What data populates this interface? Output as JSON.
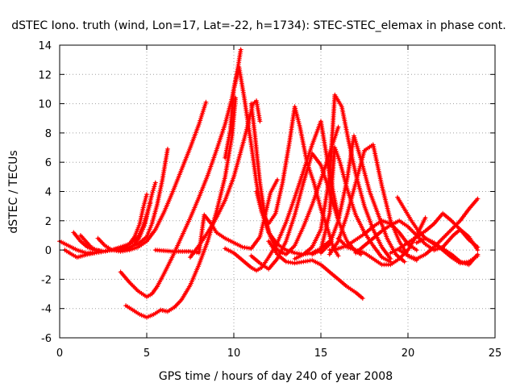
{
  "chart_data": {
    "type": "scatter",
    "title": "dSTEC Iono. truth (wind, Lon=17, Lat=-22, h=1734): STEC-STEC_elemax in phase cont.",
    "xlabel": "GPS time / hours of day 240 of year 2008",
    "ylabel": "dSTEC  / TECUs",
    "xlim": [
      0,
      25
    ],
    "ylim": [
      -6,
      14
    ],
    "xticks": [
      "0",
      "5",
      "10",
      "15",
      "20",
      "25"
    ],
    "yticks": [
      "-6",
      "-4",
      "-2",
      "0",
      "2",
      "4",
      "6",
      "8",
      "10",
      "12",
      "14"
    ],
    "grid": true,
    "marker": "+",
    "color": "#ff0000",
    "series": [
      {
        "x": [
          0.0,
          0.5,
          1.0,
          1.5,
          2.0,
          2.5,
          3.0,
          3.5,
          4.0,
          4.3,
          4.6,
          4.9,
          5.1,
          5.3,
          5.5
        ],
        "y": [
          0.6,
          0.3,
          0.0,
          -0.2,
          -0.2,
          -0.1,
          0.0,
          0.0,
          0.1,
          0.4,
          0.9,
          1.8,
          2.8,
          3.8,
          4.6
        ]
      },
      {
        "x": [
          0.3,
          0.7,
          1.0,
          1.3,
          1.6,
          2.0,
          2.5,
          3.0,
          3.5,
          4.0,
          4.3,
          4.6,
          4.8,
          5.0
        ],
        "y": [
          0.0,
          -0.3,
          -0.5,
          -0.4,
          -0.3,
          -0.2,
          -0.1,
          0.0,
          0.1,
          0.4,
          0.9,
          1.8,
          2.9,
          3.8
        ]
      },
      {
        "x": [
          0.8,
          1.2,
          1.6,
          2.0,
          2.5,
          3.0,
          3.5,
          4.0,
          4.5,
          5.0,
          5.3,
          5.6,
          5.9,
          6.2
        ],
        "y": [
          1.2,
          0.6,
          0.2,
          0.0,
          -0.1,
          0.0,
          0.1,
          0.2,
          0.4,
          0.9,
          1.8,
          3.1,
          4.8,
          6.9
        ]
      },
      {
        "x": [
          1.2,
          1.5,
          1.8,
          2.1,
          2.5,
          3.0,
          3.5,
          4.0,
          4.5,
          4.8,
          5.0,
          5.2
        ],
        "y": [
          1.0,
          0.6,
          0.2,
          0.0,
          -0.1,
          0.0,
          0.2,
          0.4,
          0.9,
          1.6,
          2.4,
          3.2
        ]
      },
      {
        "x": [
          2.2,
          2.6,
          3.0,
          3.5,
          4.0,
          4.5,
          5.0,
          5.5,
          6.0,
          6.5,
          7.0,
          7.5,
          8.0,
          8.4
        ],
        "y": [
          0.8,
          0.3,
          0.0,
          -0.1,
          0.0,
          0.2,
          0.6,
          1.4,
          2.6,
          4.0,
          5.5,
          7.0,
          8.6,
          10.1
        ]
      },
      {
        "x": [
          3.5,
          4.0,
          4.5,
          5.0,
          5.3,
          5.6,
          6.0,
          6.5,
          7.0,
          7.5,
          8.0,
          8.5,
          9.0,
          9.5,
          9.9,
          10.2,
          10.4
        ],
        "y": [
          -1.5,
          -2.2,
          -2.8,
          -3.2,
          -3.0,
          -2.5,
          -1.6,
          -0.4,
          0.9,
          2.2,
          3.6,
          5.1,
          6.8,
          8.6,
          10.4,
          12.2,
          13.7
        ]
      },
      {
        "x": [
          3.8,
          4.2,
          4.6,
          5.0,
          5.4,
          5.8,
          6.2,
          6.6,
          7.0,
          7.5,
          8.0,
          8.5,
          9.0,
          9.5,
          9.9,
          10.1
        ],
        "y": [
          -3.8,
          -4.1,
          -4.4,
          -4.6,
          -4.4,
          -4.1,
          -4.2,
          -3.9,
          -3.4,
          -2.4,
          -1.0,
          0.6,
          2.6,
          5.0,
          7.8,
          10.4
        ]
      },
      {
        "x": [
          5.5,
          6.5,
          7.5,
          8.0,
          8.3,
          8.7,
          9.0,
          9.5,
          10.0,
          10.5,
          11.0,
          11.5,
          11.8,
          12.1,
          12.5
        ],
        "y": [
          0.0,
          -0.1,
          -0.1,
          -0.2,
          2.4,
          1.8,
          1.2,
          0.8,
          0.5,
          0.2,
          0.1,
          0.9,
          2.4,
          3.9,
          4.8
        ]
      },
      {
        "x": [
          7.5,
          8.0,
          8.5,
          9.0,
          9.5,
          10.0,
          10.3,
          10.6,
          10.9,
          11.1,
          11.3,
          11.5
        ],
        "y": [
          -0.5,
          0.3,
          1.2,
          2.2,
          3.4,
          5.0,
          6.3,
          7.6,
          9.0,
          10.0,
          10.2,
          8.8
        ]
      },
      {
        "x": [
          9.5,
          9.8,
          10.0,
          10.3,
          10.6,
          11.0,
          11.3,
          11.6,
          12.0,
          12.5,
          13.0,
          13.5,
          14.0,
          14.5,
          15.0,
          15.5
        ],
        "y": [
          6.3,
          8.2,
          11.0,
          12.5,
          10.4,
          7.2,
          4.6,
          2.6,
          1.2,
          0.4,
          0.0,
          -0.2,
          -0.3,
          -0.2,
          0.1,
          0.6
        ]
      },
      {
        "x": [
          11.0,
          11.2,
          11.5,
          11.8,
          12.1,
          12.5,
          13.0,
          13.5,
          14.0,
          14.5,
          15.0,
          15.5,
          16.0
        ],
        "y": [
          10.0,
          8.0,
          4.6,
          2.2,
          0.9,
          0.0,
          -0.3,
          0.3,
          1.6,
          3.1,
          4.8,
          6.6,
          8.4
        ]
      },
      {
        "x": [
          11.3,
          11.6,
          12.0,
          12.4,
          12.8,
          13.2,
          13.5,
          13.8,
          14.2,
          14.6,
          15.0,
          15.4,
          15.7,
          16.0
        ],
        "y": [
          4.0,
          2.6,
          1.8,
          2.5,
          4.6,
          7.4,
          9.8,
          8.4,
          6.0,
          4.6,
          2.8,
          1.4,
          0.2,
          -0.4
        ]
      },
      {
        "x": [
          11.0,
          11.5,
          12.0,
          12.5,
          13.0,
          13.5,
          14.0,
          14.5,
          15.0,
          15.5,
          16.0,
          16.5,
          17.0,
          17.3
        ],
        "y": [
          -0.4,
          -0.9,
          -1.3,
          -0.6,
          0.6,
          2.4,
          4.6,
          6.6,
          5.8,
          4.0,
          2.0,
          0.6,
          -0.1,
          -0.3
        ]
      },
      {
        "x": [
          9.5,
          10.0,
          10.5,
          11.0,
          11.3,
          11.6,
          12.0,
          12.5,
          13.0,
          13.5,
          14.0,
          14.5,
          15.0,
          15.5,
          16.0
        ],
        "y": [
          0.1,
          -0.2,
          -0.7,
          -1.2,
          -1.4,
          -1.2,
          -0.5,
          0.5,
          1.9,
          3.6,
          5.4,
          7.2,
          8.8,
          5.2,
          2.2
        ]
      },
      {
        "x": [
          12.0,
          12.5,
          13.0,
          13.5,
          14.0,
          14.5,
          15.0,
          15.5,
          16.0,
          16.5,
          17.0,
          17.4
        ],
        "y": [
          0.6,
          -0.3,
          -0.8,
          -0.9,
          -0.8,
          -0.7,
          -1.0,
          -1.5,
          -2.0,
          -2.5,
          -2.9,
          -3.3
        ]
      },
      {
        "x": [
          13.5,
          14.0,
          14.5,
          15.0,
          15.5,
          15.8,
          16.2,
          16.6,
          17.0,
          17.5,
          18.0,
          18.5,
          19.0
        ],
        "y": [
          -0.6,
          -0.3,
          0.2,
          1.4,
          5.0,
          10.6,
          9.8,
          7.4,
          5.2,
          3.0,
          1.4,
          0.2,
          -0.6
        ]
      },
      {
        "x": [
          14.5,
          15.0,
          15.5,
          15.8,
          16.1,
          16.5,
          17.0,
          17.5,
          18.0,
          18.5,
          19.0
        ],
        "y": [
          -0.3,
          0.0,
          2.5,
          7.0,
          6.0,
          4.2,
          2.4,
          1.2,
          0.3,
          -0.5,
          -0.8
        ]
      },
      {
        "x": [
          15.0,
          15.5,
          16.0,
          16.5,
          16.9,
          17.3,
          17.8,
          18.3,
          18.8,
          19.3,
          19.8
        ],
        "y": [
          -0.2,
          0.4,
          2.0,
          4.8,
          7.8,
          6.2,
          4.0,
          2.4,
          0.8,
          -0.3,
          -0.8
        ]
      },
      {
        "x": [
          15.5,
          16.0,
          16.5,
          17.0,
          17.5,
          18.0,
          18.5,
          19.0,
          19.5,
          20.0,
          20.5
        ],
        "y": [
          -0.3,
          0.6,
          2.4,
          4.6,
          6.8,
          7.2,
          4.4,
          2.0,
          0.6,
          -0.4,
          -0.7
        ]
      },
      {
        "x": [
          16.0,
          16.5,
          17.0,
          17.5,
          18.0,
          18.5,
          19.0,
          19.5,
          20.0,
          20.5,
          21.0
        ],
        "y": [
          0.8,
          0.2,
          0.0,
          -0.2,
          -0.6,
          -1.0,
          -1.0,
          -0.6,
          0.0,
          1.0,
          2.2
        ]
      },
      {
        "x": [
          15.5,
          16.0,
          16.5,
          17.0,
          17.5,
          18.0,
          18.5,
          19.0,
          19.5,
          20.0,
          20.5
        ],
        "y": [
          0.0,
          0.1,
          0.3,
          0.7,
          1.1,
          1.6,
          2.0,
          1.8,
          1.2,
          0.4,
          0.0
        ]
      },
      {
        "x": [
          17.0,
          17.5,
          18.0,
          18.5,
          19.0,
          19.5,
          20.0,
          20.5,
          21.0,
          21.5
        ],
        "y": [
          -0.2,
          0.3,
          0.8,
          1.3,
          1.7,
          2.0,
          1.6,
          1.0,
          0.4,
          0.0
        ]
      },
      {
        "x": [
          19.4,
          19.8,
          20.2,
          20.6,
          21.0,
          21.5,
          22.0,
          22.5,
          23.0,
          23.5,
          24.0
        ],
        "y": [
          3.6,
          2.8,
          2.0,
          1.3,
          0.8,
          0.4,
          0.1,
          -0.3,
          -0.8,
          -1.0,
          -0.3
        ]
      },
      {
        "x": [
          19.0,
          19.5,
          20.0,
          20.5,
          21.0,
          21.5,
          22.0,
          22.5,
          23.0,
          23.5,
          24.0
        ],
        "y": [
          -0.2,
          0.1,
          0.5,
          0.9,
          1.3,
          1.8,
          2.5,
          2.0,
          1.4,
          0.7,
          0.2
        ]
      },
      {
        "x": [
          19.5,
          20.0,
          20.5,
          21.0,
          21.5,
          22.0,
          22.5,
          23.0,
          23.5,
          24.0
        ],
        "y": [
          0.0,
          -0.4,
          -0.6,
          -0.3,
          0.2,
          0.8,
          1.4,
          2.0,
          2.8,
          3.5
        ]
      },
      {
        "x": [
          20.5,
          21.0,
          21.5,
          22.0,
          22.5,
          23.0,
          23.5,
          24.0
        ],
        "y": [
          0.5,
          0.8,
          0.5,
          0.0,
          -0.5,
          -0.9,
          -0.8,
          -0.4
        ]
      },
      {
        "x": [
          21.5,
          22.0,
          22.3,
          22.6,
          23.0,
          23.5,
          24.0
        ],
        "y": [
          0.0,
          0.2,
          0.6,
          1.0,
          1.4,
          0.9,
          0.0
        ]
      }
    ]
  }
}
